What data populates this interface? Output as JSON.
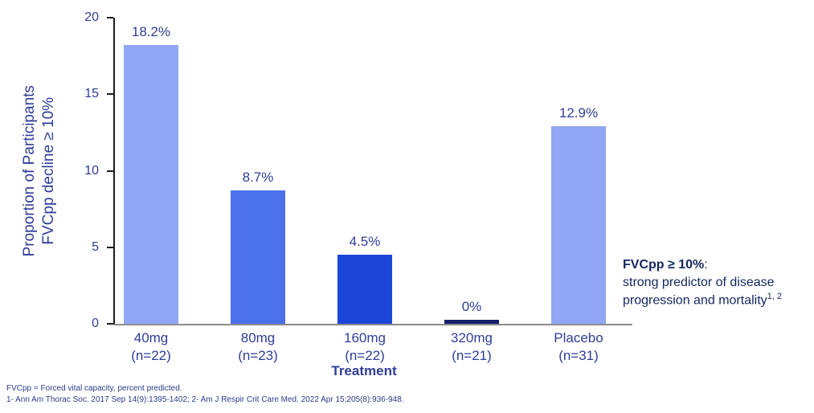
{
  "chart_data": {
    "type": "bar",
    "categories": [
      {
        "line1": "40mg",
        "line2": "(n=22)"
      },
      {
        "line1": "80mg",
        "line2": "(n=23)"
      },
      {
        "line1": "160mg",
        "line2": "(n=22)"
      },
      {
        "line1": "320mg",
        "line2": "(n=21)"
      },
      {
        "line1": "Placebo",
        "line2": "(n=31)"
      }
    ],
    "values": [
      18.2,
      8.7,
      4.5,
      0,
      12.9
    ],
    "value_labels": [
      "18.2%",
      "8.7%",
      "4.5%",
      "0%",
      "12.9%"
    ],
    "bar_colors": [
      "#91a7f3",
      "#4a70ec",
      "#1b46d7",
      "#16216b",
      "#91a7f3"
    ],
    "title": "",
    "xlabel": "Treatment",
    "ylabel_line1": "Proportion of Participants",
    "ylabel_line2": "FVCpp decline ≥ 10%",
    "ylim": [
      0,
      20
    ],
    "yticks": [
      0,
      5,
      10,
      15,
      20
    ],
    "grid": false,
    "legend": "none"
  },
  "annotation": {
    "bold_text": "FVCpp ≥ 10%",
    "colon": ":",
    "line2": "strong predictor of disease",
    "line3_text": "progression and mortality",
    "line3_superscript": "1, 2"
  },
  "footnotes": {
    "line1": "FVCpp = Forced vital capacity, percent predicted.",
    "line2": "1- Ann Am Thorac Soc. 2017 Sep 14(9):1395-1402; 2- Am J Respir Crit Care Med. 2022 Apr 15;205(8):936-948."
  },
  "colors": {
    "axis_text": "#2e3d99",
    "annotation_text": "#14265e",
    "footnote_text": "#2b3b8c",
    "axis_line": "#1c1c1c",
    "baseline": "#8c8c8c",
    "bar_light": "#91a7f3",
    "bar_medium": "#4a70ec",
    "bar_dark": "#1b46d7",
    "bar_navy": "#16216b"
  }
}
